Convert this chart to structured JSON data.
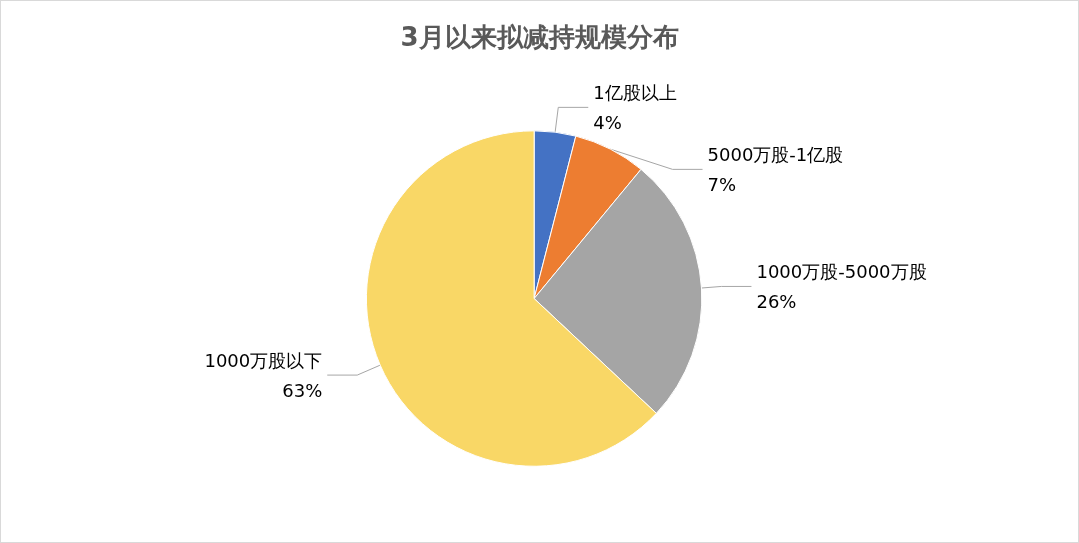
{
  "chart_data": {
    "type": "pie",
    "title": "3月以来拟减持规模分布",
    "categories": [
      "1亿股以上",
      "5000万股-1亿股",
      "1000万股-5000万股",
      "1000万股以下"
    ],
    "values": [
      4,
      7,
      26,
      63
    ],
    "value_labels": [
      "4%",
      "7%",
      "26%",
      "63%"
    ],
    "colors": [
      "#4472c4",
      "#ed7d31",
      "#a5a5a5",
      "#f9d766"
    ],
    "legend": false
  }
}
